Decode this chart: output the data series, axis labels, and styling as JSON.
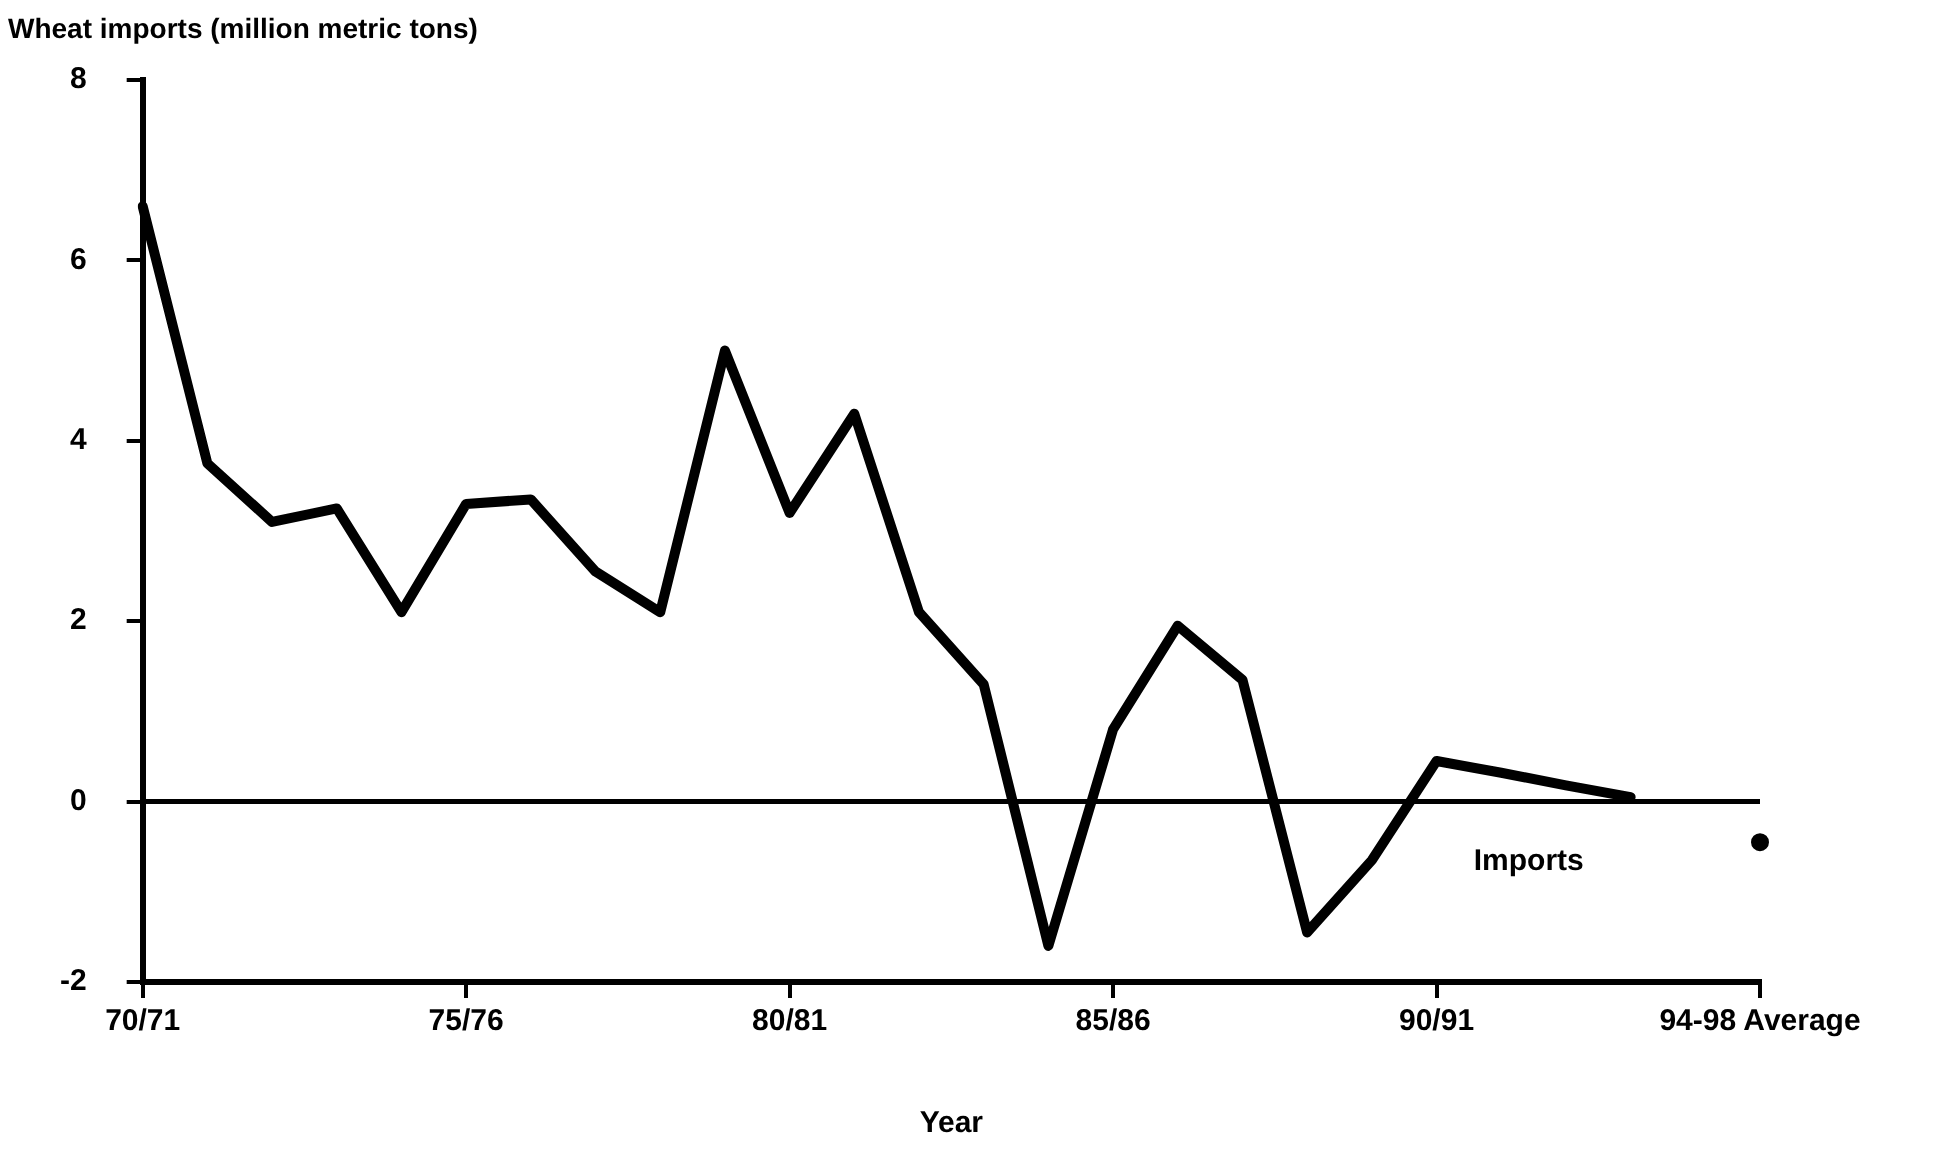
{
  "chart_data": {
    "type": "line",
    "ylabel": "Wheat imports (million metric tons)",
    "xlabel": "Year",
    "categories": [
      "70/71",
      null,
      null,
      null,
      null,
      "75/76",
      null,
      null,
      null,
      null,
      "80/81",
      null,
      null,
      null,
      null,
      "85/86",
      null,
      null,
      null,
      null,
      "90/91",
      null,
      null,
      null,
      null,
      "94-98 Average"
    ],
    "ylim": [
      -2,
      8
    ],
    "yticks": [
      -2,
      0,
      2,
      4,
      6,
      8
    ],
    "grid": false,
    "legend": false,
    "series": [
      {
        "type": "line",
        "color": "#000000",
        "marker": "none",
        "values": [
          6.6,
          3.75,
          3.1,
          3.25,
          2.1,
          3.3,
          3.35,
          2.55,
          2.1,
          5.0,
          3.2,
          4.3,
          2.1,
          1.3,
          -1.6,
          0.8,
          1.95,
          1.35,
          -1.45,
          -0.65,
          0.45,
          0.32,
          0.18,
          0.05,
          null,
          null
        ]
      },
      {
        "type": "scatter",
        "color": "#000000",
        "marker": "circle",
        "values": [
          null,
          null,
          null,
          null,
          null,
          null,
          null,
          null,
          null,
          null,
          null,
          null,
          null,
          null,
          null,
          null,
          null,
          null,
          null,
          null,
          null,
          null,
          null,
          null,
          null,
          -0.45
        ]
      }
    ],
    "ref_lines": [
      {
        "axis": "y",
        "value": 0,
        "color": "#000000"
      }
    ],
    "annotations": [
      "Imports"
    ]
  }
}
